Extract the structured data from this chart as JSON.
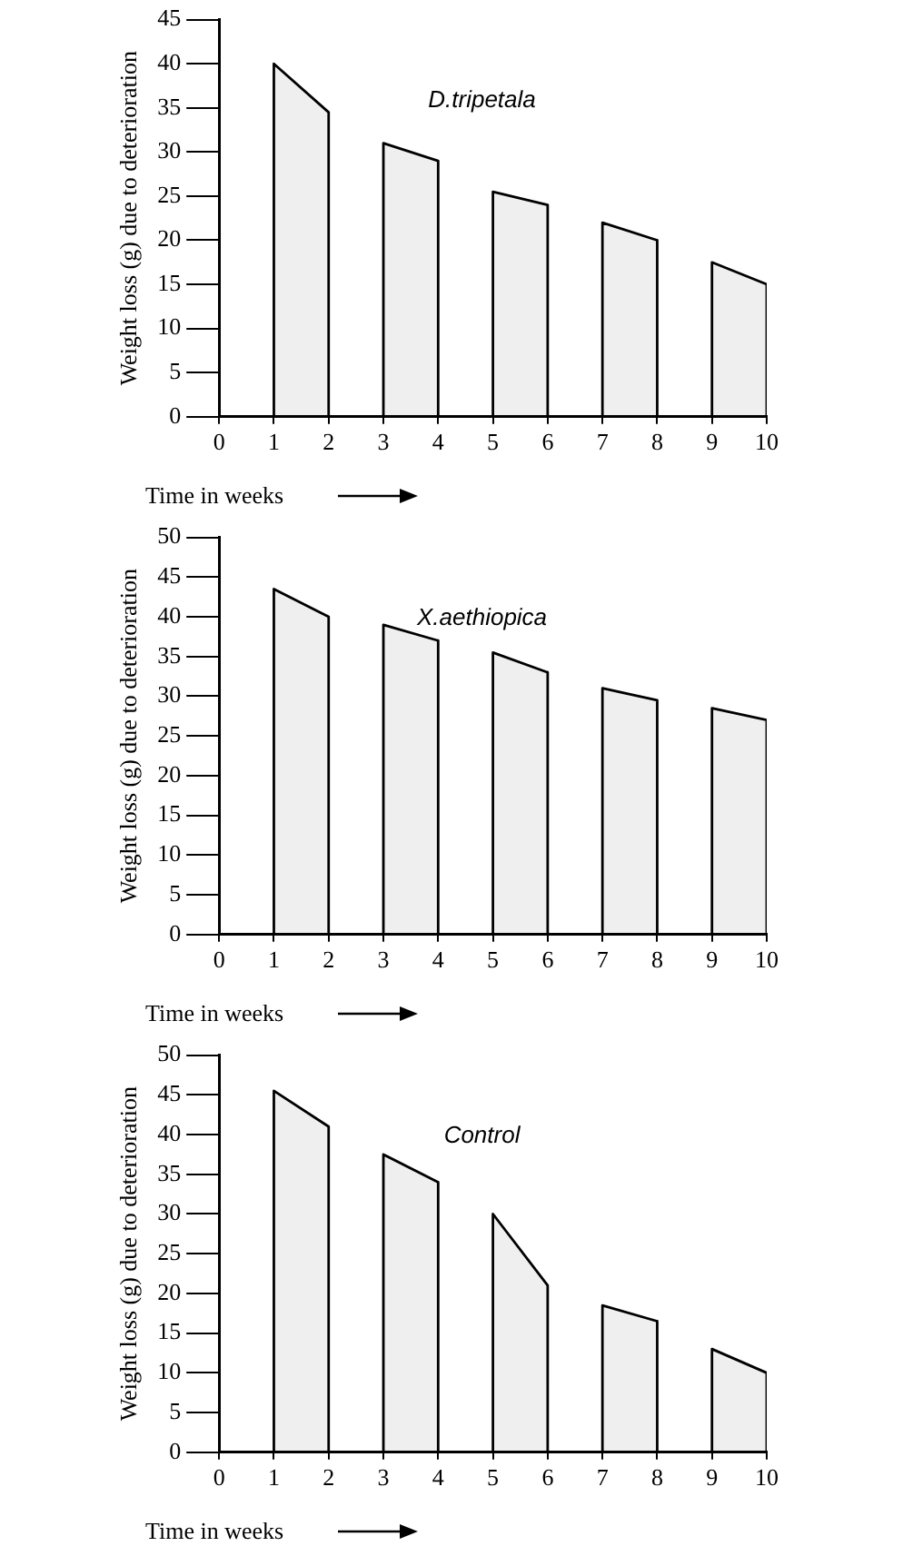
{
  "chart_data": [
    {
      "type": "area",
      "title": "D.tripetala",
      "xlabel": "Time in weeks",
      "ylabel": "Weight loss (g) due to deterioration",
      "xlim": [
        0,
        10
      ],
      "xticks": [
        0,
        1,
        2,
        3,
        4,
        5,
        6,
        7,
        8,
        9,
        10
      ],
      "ylim": [
        0,
        45
      ],
      "yticks": [
        0,
        5,
        10,
        15,
        20,
        25,
        30,
        35,
        40,
        45
      ],
      "legend": false,
      "marker": "none",
      "series": [
        {
          "color": "#000000",
          "x": [
            1,
            1,
            2,
            2
          ],
          "values": [
            0,
            40,
            34.5,
            0
          ]
        },
        {
          "color": "#000000",
          "x": [
            3,
            3,
            4,
            4
          ],
          "values": [
            0,
            31,
            29,
            0
          ]
        },
        {
          "color": "#000000",
          "x": [
            5,
            5,
            6,
            6
          ],
          "values": [
            0,
            25.5,
            24,
            0
          ]
        },
        {
          "color": "#000000",
          "x": [
            7,
            7,
            8,
            8
          ],
          "values": [
            0,
            22,
            20,
            0
          ]
        },
        {
          "color": "#000000",
          "x": [
            9,
            9,
            10,
            10
          ],
          "values": [
            0,
            17.5,
            15,
            0
          ]
        }
      ]
    },
    {
      "type": "area",
      "title": "X.aethiopica",
      "xlabel": "Time in weeks",
      "ylabel": "Weight loss (g) due to deterioration",
      "xlim": [
        0,
        10
      ],
      "xticks": [
        0,
        1,
        2,
        3,
        4,
        5,
        6,
        7,
        8,
        9,
        10
      ],
      "ylim": [
        0,
        50
      ],
      "yticks": [
        0,
        5,
        10,
        15,
        20,
        25,
        30,
        35,
        40,
        45,
        50
      ],
      "legend": false,
      "marker": "none",
      "series": [
        {
          "color": "#000000",
          "x": [
            1,
            1,
            2,
            2
          ],
          "values": [
            0,
            43.5,
            40,
            0
          ]
        },
        {
          "color": "#000000",
          "x": [
            3,
            3,
            4,
            4
          ],
          "values": [
            0,
            39,
            37,
            0
          ]
        },
        {
          "color": "#000000",
          "x": [
            5,
            5,
            6,
            6
          ],
          "values": [
            0,
            35.5,
            33,
            0
          ]
        },
        {
          "color": "#000000",
          "x": [
            7,
            7,
            8,
            8
          ],
          "values": [
            0,
            31,
            29.5,
            0
          ]
        },
        {
          "color": "#000000",
          "x": [
            9,
            9,
            10,
            10
          ],
          "values": [
            0,
            28.5,
            27,
            0
          ]
        }
      ]
    },
    {
      "type": "area",
      "title": "Control",
      "xlabel": "Time in weeks",
      "ylabel": "Weight loss (g) due to deterioration",
      "xlim": [
        0,
        10
      ],
      "xticks": [
        0,
        1,
        2,
        3,
        4,
        5,
        6,
        7,
        8,
        9,
        10
      ],
      "ylim": [
        0,
        50
      ],
      "yticks": [
        0,
        5,
        10,
        15,
        20,
        25,
        30,
        35,
        40,
        45,
        50
      ],
      "legend": false,
      "marker": "none",
      "series": [
        {
          "color": "#000000",
          "x": [
            1,
            1,
            2,
            2
          ],
          "values": [
            0,
            45.5,
            41,
            0
          ]
        },
        {
          "color": "#000000",
          "x": [
            3,
            3,
            4,
            4
          ],
          "values": [
            0,
            37.5,
            34,
            0
          ]
        },
        {
          "color": "#000000",
          "x": [
            5,
            5,
            6,
            6
          ],
          "values": [
            0,
            30,
            21,
            0
          ]
        },
        {
          "color": "#000000",
          "x": [
            7,
            7,
            8,
            8
          ],
          "values": [
            0,
            18.5,
            16.5,
            0
          ]
        },
        {
          "color": "#000000",
          "x": [
            9,
            9,
            10,
            10
          ],
          "values": [
            0,
            13,
            10,
            0
          ]
        }
      ]
    }
  ]
}
